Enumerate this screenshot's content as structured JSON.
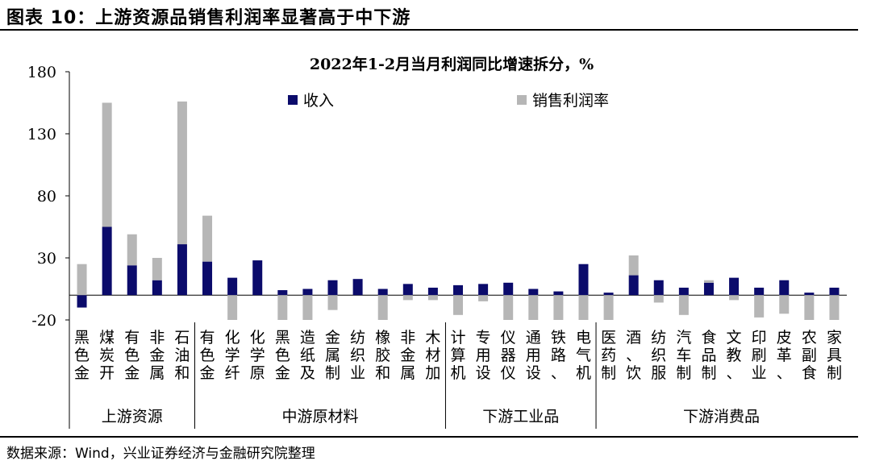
{
  "figure_title": "图表 10：上游资源品销售利润率显著高于中下游",
  "source_note": "数据来源：Wind，兴业证券经济与金融研究院整理",
  "colors": {
    "revenue": "#0b0b6b",
    "margin": "#b6b6b6"
  },
  "chart_data": {
    "type": "bar",
    "stacked": true,
    "title": "2022年1-2月当月利润同比增速拆分，%",
    "xlabel": "",
    "ylabel": "",
    "ylim": [
      -20,
      180
    ],
    "yticks": [
      180,
      130,
      80,
      30,
      -20
    ],
    "legend_position": "top",
    "categories": [
      "黑色金",
      "煤炭开",
      "有色金",
      "非金属",
      "石油和",
      "有色金",
      "化学纤",
      "化学原",
      "黑色金",
      "造纸及",
      "金属制",
      "纺织业",
      "橡胶和",
      "非金属",
      "木材加",
      "计算机",
      "专用设",
      "仪器仪",
      "通用设",
      "铁路、",
      "电气机",
      "医药制",
      "酒、饮",
      "纺织服",
      "汽车制",
      "食品制",
      "文教、",
      "印刷业",
      "皮革、",
      "农副食",
      "家具制"
    ],
    "groups": [
      {
        "name": "上游资源",
        "count": 5
      },
      {
        "name": "中游原材料",
        "count": 10
      },
      {
        "name": "下游工业品",
        "count": 6
      },
      {
        "name": "下游消费品",
        "count": 10
      }
    ],
    "series": [
      {
        "name": "收入",
        "values": [
          -10,
          55,
          24,
          12,
          41,
          27,
          14,
          28,
          4,
          5,
          12,
          13,
          5,
          9,
          6,
          8,
          9,
          10,
          5,
          3,
          25,
          2,
          16,
          12,
          6,
          10,
          14,
          6,
          12,
          2,
          6
        ]
      },
      {
        "name": "销售利润率",
        "values": [
          25,
          100,
          25,
          18,
          115,
          37,
          -20,
          0,
          -20,
          -20,
          -12,
          0,
          -20,
          -4,
          -4,
          -16,
          -5,
          -20,
          -20,
          -20,
          -20,
          -20,
          16,
          -6,
          -16,
          2,
          -4,
          -18,
          -15,
          -20,
          -20
        ]
      }
    ]
  }
}
